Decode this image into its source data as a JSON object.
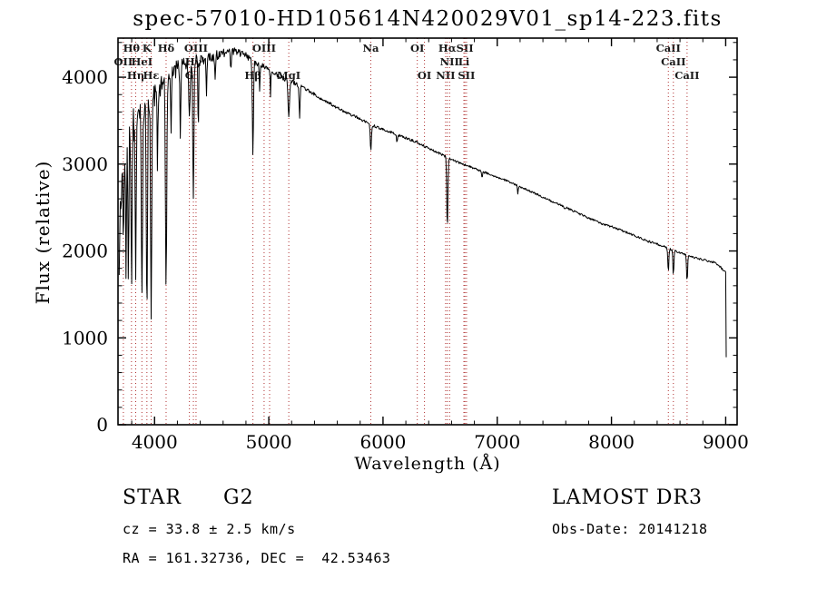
{
  "chart_data": {
    "type": "line",
    "title": "spec-57010-HD105614N420029V01_sp14-223.fits",
    "xlabel": "Wavelength (Å)",
    "ylabel": "Flux (relative)",
    "xlim": [
      3680,
      9100
    ],
    "ylim": [
      0,
      4450
    ],
    "x_ticks": [
      4000,
      5000,
      6000,
      7000,
      8000,
      9000
    ],
    "x_minor_step": 200,
    "y_ticks": [
      0,
      1000,
      2000,
      3000,
      4000
    ],
    "y_minor_step": 200,
    "grid": false,
    "line_color": "#000000",
    "marker_line_color": "#b03030",
    "marker_label_color": "#1a1a1a",
    "noise": {
      "blue": 270,
      "base": 12,
      "decay": 480,
      "step": 5
    },
    "continuum_points": [
      [
        3690,
        1500
      ],
      [
        3700,
        2600
      ],
      [
        3740,
        3000
      ],
      [
        3800,
        3400
      ],
      [
        3900,
        3650
      ],
      [
        4000,
        3800
      ],
      [
        4100,
        3950
      ],
      [
        4200,
        4100
      ],
      [
        4300,
        4150
      ],
      [
        4400,
        4200
      ],
      [
        4500,
        4230
      ],
      [
        4600,
        4280
      ],
      [
        4700,
        4300
      ],
      [
        4800,
        4250
      ],
      [
        4900,
        4150
      ],
      [
        5000,
        4100
      ],
      [
        5100,
        4000
      ],
      [
        5200,
        3950
      ],
      [
        5300,
        3880
      ],
      [
        5400,
        3800
      ],
      [
        5500,
        3720
      ],
      [
        5600,
        3650
      ],
      [
        5700,
        3580
      ],
      [
        5800,
        3520
      ],
      [
        5900,
        3450
      ],
      [
        6000,
        3400
      ],
      [
        6100,
        3350
      ],
      [
        6200,
        3300
      ],
      [
        6300,
        3250
      ],
      [
        6400,
        3180
      ],
      [
        6500,
        3120
      ],
      [
        6600,
        3050
      ],
      [
        6700,
        3000
      ],
      [
        6800,
        2950
      ],
      [
        6900,
        2900
      ],
      [
        7000,
        2850
      ],
      [
        7100,
        2800
      ],
      [
        7200,
        2740
      ],
      [
        7300,
        2680
      ],
      [
        7400,
        2620
      ],
      [
        7500,
        2560
      ],
      [
        7600,
        2500
      ],
      [
        7700,
        2440
      ],
      [
        7800,
        2380
      ],
      [
        7900,
        2320
      ],
      [
        8000,
        2280
      ],
      [
        8100,
        2230
      ],
      [
        8200,
        2180
      ],
      [
        8300,
        2120
      ],
      [
        8400,
        2080
      ],
      [
        8500,
        2030
      ],
      [
        8600,
        1980
      ],
      [
        8700,
        1930
      ],
      [
        8800,
        1900
      ],
      [
        8900,
        1870
      ],
      [
        8950,
        1820
      ],
      [
        9000,
        1750
      ],
      [
        9004,
        1000
      ],
      [
        9008,
        150
      ]
    ],
    "absorption_lines": [
      {
        "wavelength": 3727,
        "flux_min": 2300,
        "width": 6
      },
      {
        "wavelength": 3750,
        "flux_min": 1800,
        "width": 5
      },
      {
        "wavelength": 3771,
        "flux_min": 1750,
        "width": 5
      },
      {
        "wavelength": 3798,
        "flux_min": 1550,
        "width": 6
      },
      {
        "wavelength": 3835,
        "flux_min": 1500,
        "width": 6
      },
      {
        "wavelength": 3889,
        "flux_min": 1300,
        "width": 7
      },
      {
        "wavelength": 3933,
        "flux_min": 1080,
        "width": 7
      },
      {
        "wavelength": 3970,
        "flux_min": 1130,
        "width": 7
      },
      {
        "wavelength": 4026,
        "flux_min": 2900,
        "width": 5
      },
      {
        "wavelength": 4101,
        "flux_min": 1550,
        "width": 8
      },
      {
        "wavelength": 4144,
        "flux_min": 3300,
        "width": 5
      },
      {
        "wavelength": 4226,
        "flux_min": 3300,
        "width": 5
      },
      {
        "wavelength": 4305,
        "flux_min": 3500,
        "width": 8
      },
      {
        "wavelength": 4340,
        "flux_min": 2550,
        "width": 7
      },
      {
        "wavelength": 4383,
        "flux_min": 3400,
        "width": 5
      },
      {
        "wavelength": 4455,
        "flux_min": 3800,
        "width": 5
      },
      {
        "wavelength": 4531,
        "flux_min": 3950,
        "width": 5
      },
      {
        "wavelength": 4668,
        "flux_min": 4050,
        "width": 5
      },
      {
        "wavelength": 4861,
        "flux_min": 3080,
        "width": 7
      },
      {
        "wavelength": 4920,
        "flux_min": 3850,
        "width": 5
      },
      {
        "wavelength": 5015,
        "flux_min": 3800,
        "width": 5
      },
      {
        "wavelength": 5175,
        "flux_min": 3550,
        "width": 9
      },
      {
        "wavelength": 5270,
        "flux_min": 3550,
        "width": 6
      },
      {
        "wavelength": 5893,
        "flux_min": 3150,
        "width": 7
      },
      {
        "wavelength": 6122,
        "flux_min": 3230,
        "width": 5
      },
      {
        "wavelength": 6563,
        "flux_min": 2260,
        "width": 7
      },
      {
        "wavelength": 6867,
        "flux_min": 2850,
        "width": 6
      },
      {
        "wavelength": 7180,
        "flux_min": 2650,
        "width": 5
      },
      {
        "wavelength": 7594,
        "flux_min": 2480,
        "width": 8
      },
      {
        "wavelength": 8498,
        "flux_min": 1760,
        "width": 6
      },
      {
        "wavelength": 8542,
        "flux_min": 1720,
        "width": 6
      },
      {
        "wavelength": 8662,
        "flux_min": 1640,
        "width": 6
      }
    ],
    "line_markers": [
      {
        "label": "OII",
        "wavelength": 3727,
        "row": 1
      },
      {
        "label": "Hθ",
        "wavelength": 3798,
        "row": 0
      },
      {
        "label": "Hη",
        "wavelength": 3835,
        "row": 2
      },
      {
        "label": "HeI",
        "wavelength": 3889,
        "row": 1
      },
      {
        "label": "K",
        "wavelength": 3933,
        "row": 0
      },
      {
        "label": "Hε",
        "wavelength": 3970,
        "row": 2
      },
      {
        "label": "Hδ",
        "wavelength": 4101,
        "row": 0
      },
      {
        "label": "G",
        "wavelength": 4305,
        "row": 2
      },
      {
        "label": "Hγ",
        "wavelength": 4340,
        "row": 1
      },
      {
        "label": "OIII",
        "wavelength": 4363,
        "row": 0
      },
      {
        "label": "Hβ",
        "wavelength": 4861,
        "row": 2
      },
      {
        "label": "OIII",
        "wavelength": 4959,
        "row": 0
      },
      {
        "label": "",
        "wavelength": 5007,
        "row": 0
      },
      {
        "label": "MgI",
        "wavelength": 5175,
        "row": 2
      },
      {
        "label": "Na",
        "wavelength": 5893,
        "row": 0
      },
      {
        "label": "OI",
        "wavelength": 6300,
        "row": 0
      },
      {
        "label": "OI",
        "wavelength": 6363,
        "row": 2
      },
      {
        "label": "NII",
        "wavelength": 6548,
        "row": 2
      },
      {
        "label": "Hα",
        "wavelength": 6563,
        "row": 0
      },
      {
        "label": "NII",
        "wavelength": 6583,
        "row": 1
      },
      {
        "label": "Li",
        "wavelength": 6708,
        "row": 1
      },
      {
        "label": "SII",
        "wavelength": 6717,
        "row": 0
      },
      {
        "label": "SII",
        "wavelength": 6731,
        "row": 2
      },
      {
        "label": "CaII",
        "wavelength": 8498,
        "row": 0
      },
      {
        "label": "CaII",
        "wavelength": 8542,
        "row": 1
      },
      {
        "label": "CaII",
        "wavelength": 8662,
        "row": 2
      }
    ]
  },
  "footer": {
    "left": {
      "class": "STAR",
      "subclass": "G2",
      "cz": "cz = 33.8 ± 2.5 km/s",
      "radec": "RA = 161.32736, DEC =  42.53463"
    },
    "right": {
      "survey": "LAMOST DR3",
      "obs_date": "Obs-Date: 20141218"
    }
  }
}
